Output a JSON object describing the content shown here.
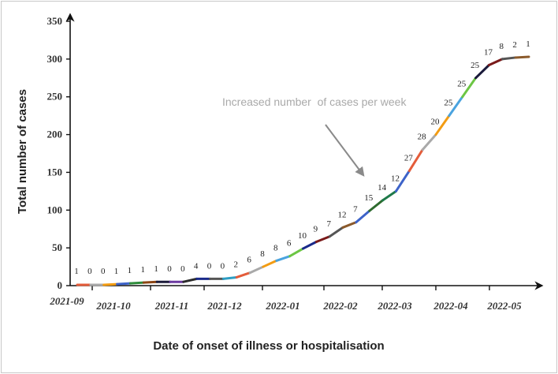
{
  "chart_data": {
    "type": "line",
    "title": "",
    "xlabel": "Date of onset of illness or hospitalisation",
    "ylabel": "Total number of cases",
    "ylim": [
      0,
      350
    ],
    "yticks": [
      0,
      50,
      100,
      150,
      200,
      250,
      300,
      350
    ],
    "x_tick_labels": [
      "2021-09",
      "2021-10",
      "2021-11",
      "2021-12",
      "2022-01",
      "2022-02",
      "2022-03",
      "2022-04",
      "2022-05"
    ],
    "annotation": "Increased number  of cases per week",
    "weekly_new_cases": [
      1,
      0,
      0,
      1,
      1,
      1,
      1,
      0,
      0,
      4,
      0,
      0,
      2,
      6,
      8,
      8,
      6,
      10,
      9,
      7,
      12,
      7,
      15,
      14,
      12,
      27,
      28,
      20,
      25,
      25,
      25,
      17,
      8,
      2,
      1
    ],
    "cumulative_cases": [
      1,
      1,
      1,
      2,
      3,
      4,
      5,
      5,
      5,
      9,
      9,
      9,
      11,
      17,
      25,
      33,
      39,
      49,
      58,
      65,
      77,
      84,
      99,
      113,
      125,
      152,
      180,
      200,
      225,
      250,
      275,
      292,
      300,
      302,
      303
    ],
    "segment_colors": [
      "#e45c3a",
      "#a9a9a9",
      "#f39c12",
      "#3d63c9",
      "#2e8b3a",
      "#8b4513",
      "#1a1a3a",
      "#6b3aa0",
      "#2b2b2b",
      "#1a2a8a",
      "#555555",
      "#2d9ec4",
      "#e45c3a",
      "#a9a9a9",
      "#f39c12",
      "#4aa3df",
      "#6cc644",
      "#1a2a8a",
      "#7a1a1a",
      "#555555",
      "#8b5a2b",
      "#3d63c9",
      "#2e6b2e",
      "#1f7a4a",
      "#3d63c9",
      "#e45c3a",
      "#a9a9a9",
      "#f39c12",
      "#4aa3df",
      "#6cc644",
      "#1a1a3a",
      "#7a1a1a",
      "#555555",
      "#8b5a2b"
    ]
  }
}
